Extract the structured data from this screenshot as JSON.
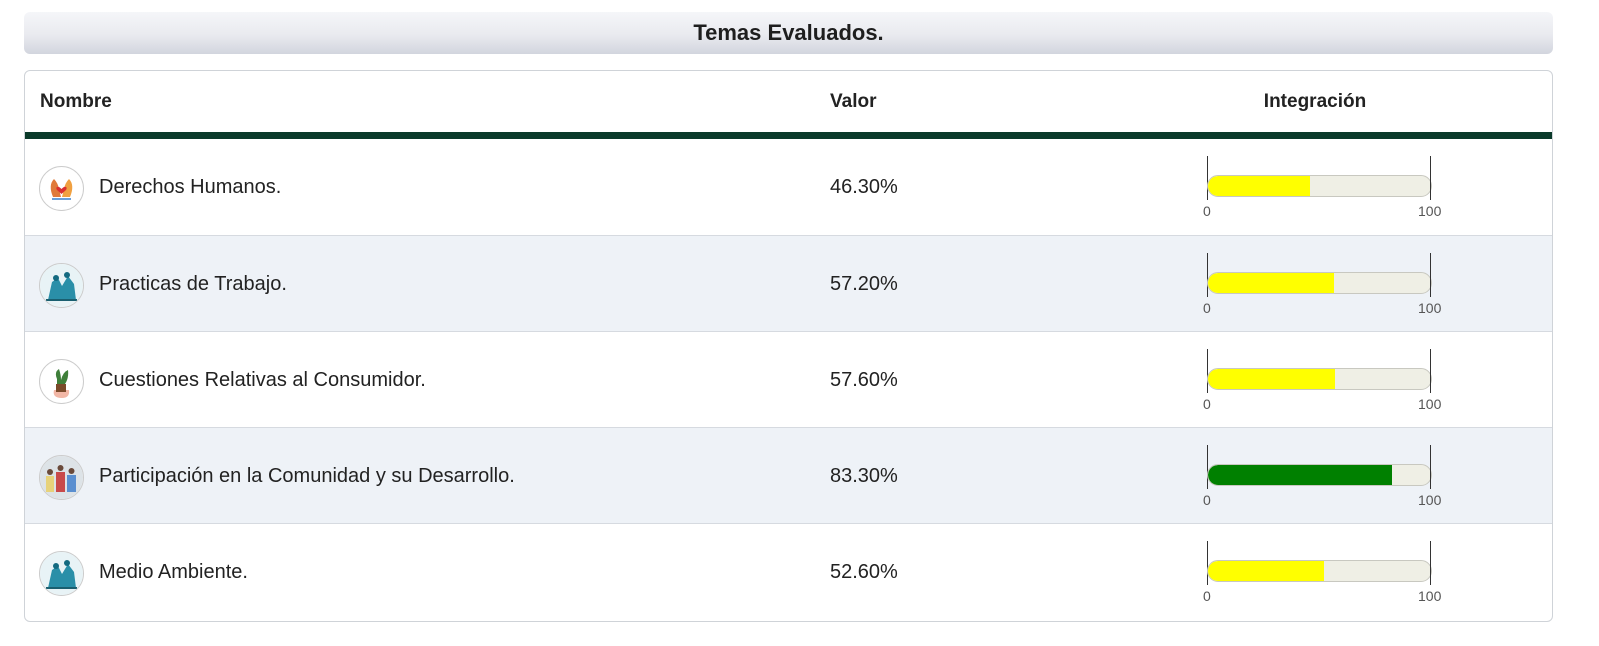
{
  "panel": {
    "title": "Temas Evaluados."
  },
  "table": {
    "headers": {
      "nombre": "Nombre",
      "valor": "Valor",
      "integracion": "Integración"
    },
    "gauge_scale": {
      "min": "0",
      "max": "100"
    },
    "rows": [
      {
        "name": "Derechos Humanos.",
        "value": "46.30%",
        "level": 46.3,
        "bar_color": "#ffff00",
        "icon": "hands-heart-icon"
      },
      {
        "name": "Practicas de Trabajo.",
        "value": "57.20%",
        "level": 57.2,
        "bar_color": "#ffff00",
        "icon": "workers-icon"
      },
      {
        "name": "Cuestiones Relativas al Consumidor.",
        "value": "57.60%",
        "level": 57.6,
        "bar_color": "#ffff00",
        "icon": "plant-hand-icon"
      },
      {
        "name": "Participación en la Comunidad y su Desarrollo.",
        "value": "83.30%",
        "level": 83.3,
        "bar_color": "#008000",
        "icon": "community-icon"
      },
      {
        "name": "Medio Ambiente.",
        "value": "52.60%",
        "level": 52.6,
        "bar_color": "#ffff00",
        "icon": "workers-icon"
      }
    ]
  },
  "colors": {
    "header_rule": "#0a3a2a",
    "alt_row": "#eef2f7",
    "track": "#efefe5"
  }
}
